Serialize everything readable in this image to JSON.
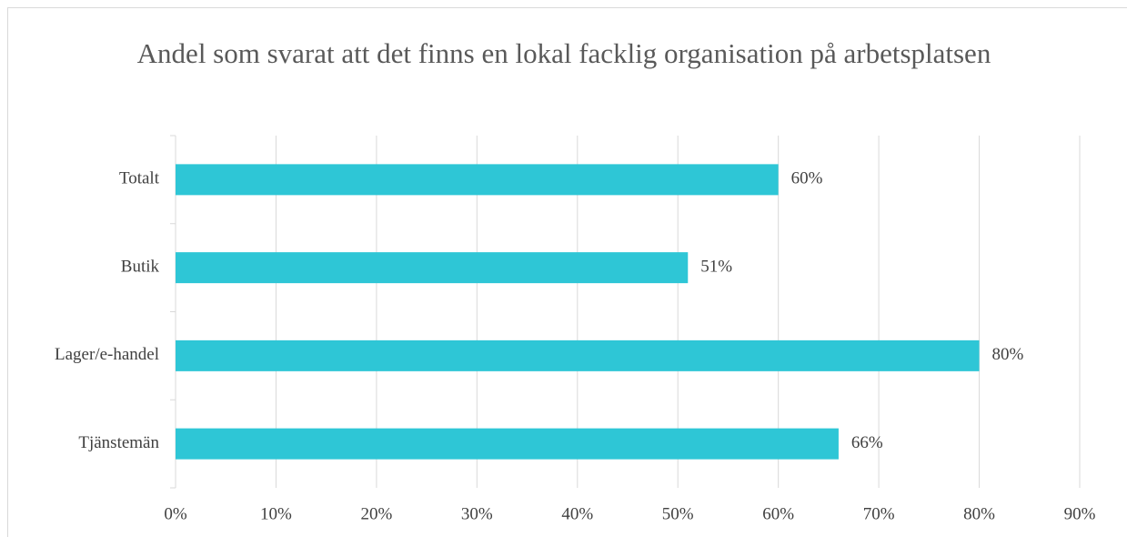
{
  "chart_data": {
    "type": "bar",
    "orientation": "horizontal",
    "title": "Andel som svarat att det finns en lokal facklig organisation på arbetsplatsen",
    "categories": [
      "Totalt",
      "Butik",
      "Lager/e-handel",
      "Tjänstemän"
    ],
    "values": [
      60,
      51,
      80,
      66
    ],
    "value_labels": [
      "60%",
      "51%",
      "80%",
      "66%"
    ],
    "color": "#2ec6d6",
    "xlim": [
      0,
      90
    ],
    "xticks": [
      {
        "value": 0,
        "label": "0%"
      },
      {
        "value": 10,
        "label": "10%"
      },
      {
        "value": 20,
        "label": "20%"
      },
      {
        "value": 30,
        "label": "30%"
      },
      {
        "value": 40,
        "label": "40%"
      },
      {
        "value": 50,
        "label": "50%"
      },
      {
        "value": 60,
        "label": "60%"
      },
      {
        "value": 70,
        "label": "70%"
      },
      {
        "value": 80,
        "label": "80%"
      },
      {
        "value": 90,
        "label": "90%"
      }
    ],
    "grid": true
  }
}
